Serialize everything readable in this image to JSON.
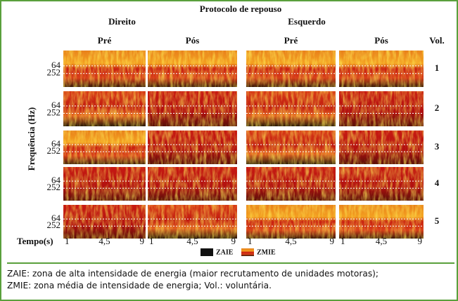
{
  "figure": {
    "title": "Protocolo de repouso",
    "groups": [
      {
        "label": "Direito",
        "columns": [
          "Pré",
          "Pós"
        ]
      },
      {
        "label": "Esquerdo",
        "columns": [
          "Pré",
          "Pós"
        ]
      }
    ],
    "row_header": "Vol.",
    "rows": [
      "1",
      "2",
      "3",
      "4",
      "5"
    ],
    "y_label": "Frequência (Hz)",
    "y_ticks": [
      "64",
      "252"
    ],
    "x_label": "Tempo(s)",
    "x_ticks": [
      "1",
      "4,5",
      "9"
    ],
    "legend": [
      "ZAIE",
      "ZMIE"
    ]
  },
  "caption": [
    "ZAIE: zona de alta intensidade de energia (maior recrutamento de unidades motoras);",
    "ZMIE: zona média de intensidade de energia; Vol.: voluntária."
  ]
}
